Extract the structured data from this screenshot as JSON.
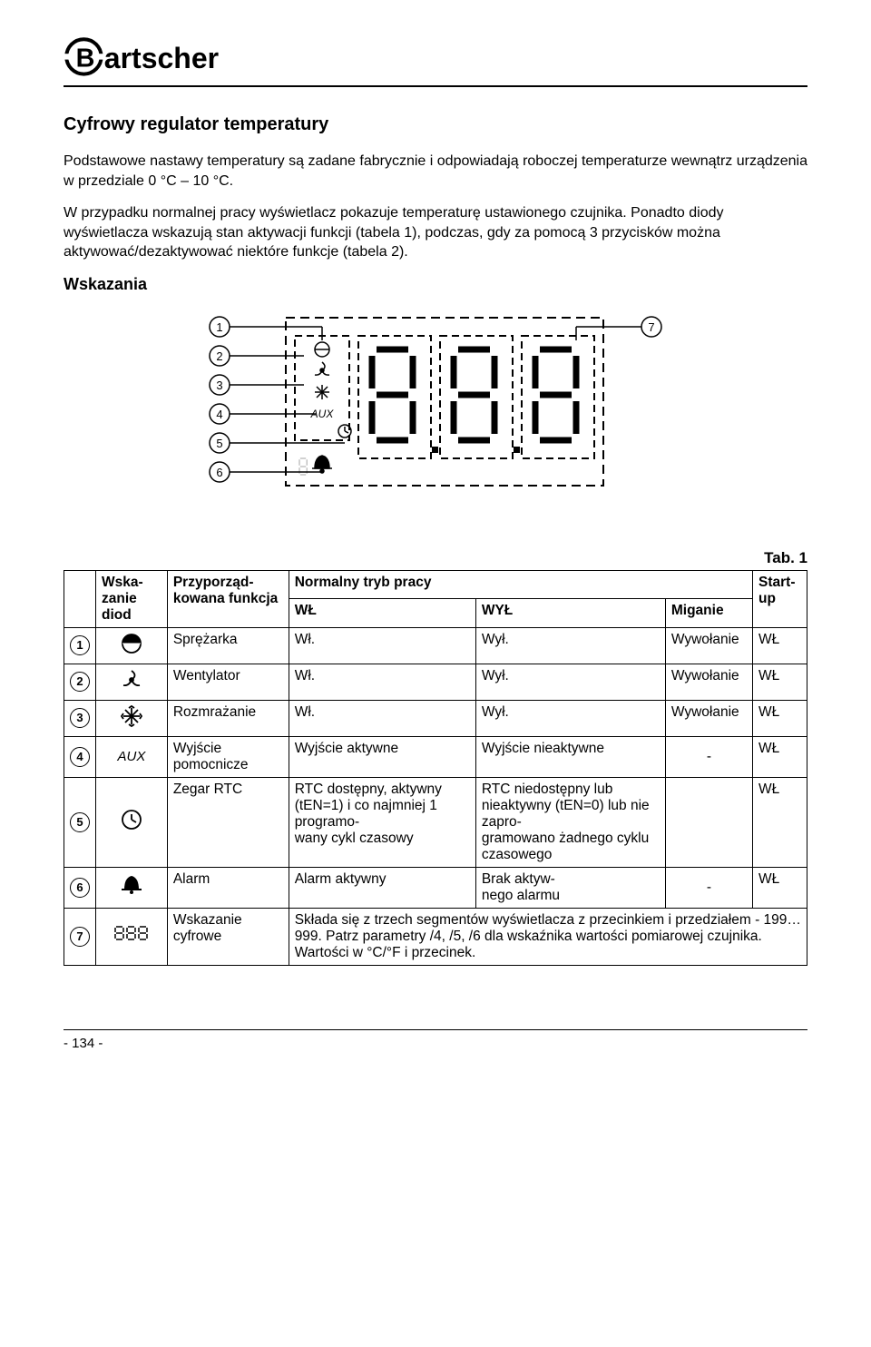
{
  "brand": "Bartscher",
  "heading": "Cyfrowy regulator temperatury",
  "intro1": "Podstawowe nastawy temperatury są zadane fabrycznie i odpowiadają roboczej temperaturze wewnątrz urządzenia w przedziale 0 °C – 10 °C.",
  "intro2": "W przypadku normalnej pracy wyświetlacz pokazuje temperaturę ustawionego czujnika. Ponadto diody wyświetlacza wskazują stan aktywacji funkcji (tabela 1), podczas, gdy za pomocą 3 przycisków można aktywować/dezaktywować niektóre funkcje (tabela 2).",
  "subheading": "Wskazania",
  "tab_label": "Tab. 1",
  "diagram": {
    "left_labels": [
      "1",
      "2",
      "3",
      "4",
      "5",
      "6"
    ],
    "right_label": "7",
    "aux_text": "AUX"
  },
  "table": {
    "head": {
      "c1": "Wska-\nzanie diod",
      "c2": "Przyporząd-\nkowana funkcja",
      "c3": "Normalny tryb pracy",
      "c3a": "WŁ",
      "c3b": "WYŁ",
      "c3c": "Miganie",
      "c4": "Start-\nup"
    },
    "rows": [
      {
        "n": "1",
        "icon": "compressor",
        "func": "Sprężarka",
        "on": "Wł.",
        "off": "Wył.",
        "blink": "Wywołanie",
        "start": "WŁ"
      },
      {
        "n": "2",
        "icon": "fan",
        "func": "Wentylator",
        "on": "Wł.",
        "off": "Wył.",
        "blink": "Wywołanie",
        "start": "WŁ"
      },
      {
        "n": "3",
        "icon": "defrost",
        "func": "Rozmrażanie",
        "on": "Wł.",
        "off": "Wył.",
        "blink": "Wywołanie",
        "start": "WŁ"
      },
      {
        "n": "4",
        "icon": "aux",
        "func": "Wyjście pomocnicze",
        "on": "Wyjście aktywne",
        "off": "Wyjście nieaktywne",
        "blink": "-",
        "start": "WŁ"
      },
      {
        "n": "5",
        "icon": "clock",
        "func": "Zegar RTC",
        "on": "RTC dostępny, aktywny (tEN=1) i co najmniej 1 programo-\nwany cykl czasowy",
        "off": "RTC niedostępny lub nieaktywny (tEN=0) lub nie zapro-\ngramowano żadnego cyklu czasowego",
        "blink": "",
        "start": "WŁ"
      },
      {
        "n": "6",
        "icon": "alarm",
        "func": "Alarm",
        "on": "Alarm aktywny",
        "off": "Brak aktyw-\nnego alarmu",
        "blink": "-",
        "start": "WŁ"
      },
      {
        "n": "7",
        "icon": "digits",
        "func": "Wskazanie cyfrowe",
        "merged": "Składa się z trzech segmentów wyświetlacza z przecinkiem i przedziałem - 199…999. Patrz parametry /4, /5, /6 dla wskaźnika wartości pomiarowej czujnika. Wartości w °C/°F i przecinek."
      }
    ]
  },
  "footer": "- 134 -"
}
